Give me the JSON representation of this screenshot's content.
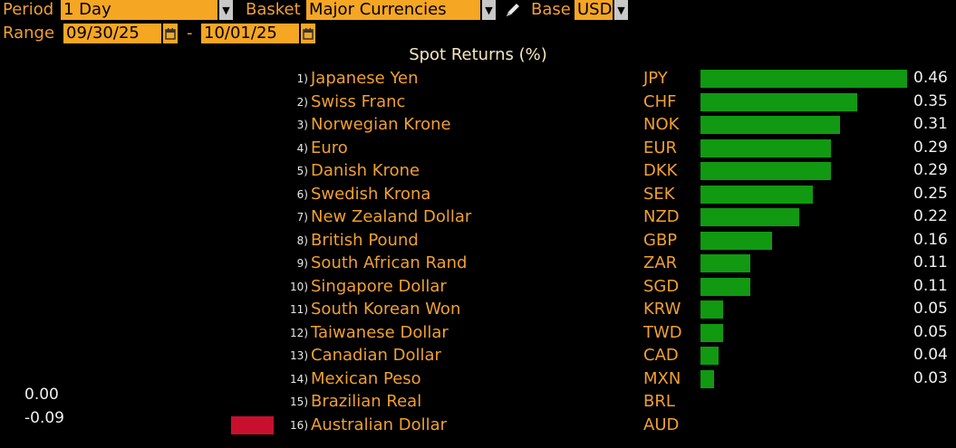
{
  "header": {
    "period_label": "Period",
    "period_value": "1 Day",
    "basket_label": "Basket",
    "basket_value": "Major Currencies",
    "base_label": "Base",
    "base_value": "USD",
    "range_label": "Range",
    "range_start": "09/30/25",
    "range_separator": "-",
    "range_end": "10/01/25"
  },
  "colors": {
    "positive": "#119911",
    "negative": "#c8102e",
    "accent": "#f5a623"
  },
  "chart_data": {
    "type": "bar",
    "title": "Spot Returns (%)",
    "orientation": "horizontal",
    "categories": [
      "Japanese Yen",
      "Swiss Franc",
      "Norwegian Krone",
      "Euro",
      "Danish Krone",
      "Swedish Krona",
      "New Zealand Dollar",
      "British Pound",
      "South African Rand",
      "Singapore Dollar",
      "South Korean Won",
      "Taiwanese Dollar",
      "Canadian Dollar",
      "Mexican Peso",
      "Brazilian Real",
      "Australian Dollar"
    ],
    "codes": [
      "JPY",
      "CHF",
      "NOK",
      "EUR",
      "DKK",
      "SEK",
      "NZD",
      "GBP",
      "ZAR",
      "SGD",
      "KRW",
      "TWD",
      "CAD",
      "MXN",
      "BRL",
      "AUD"
    ],
    "ranks": [
      "1)",
      "2)",
      "3)",
      "4)",
      "5)",
      "6)",
      "7)",
      "8)",
      "9)",
      "10)",
      "11)",
      "12)",
      "13)",
      "14)",
      "15)",
      "16)"
    ],
    "values": [
      0.46,
      0.35,
      0.31,
      0.29,
      0.29,
      0.25,
      0.22,
      0.16,
      0.11,
      0.11,
      0.05,
      0.05,
      0.04,
      0.03,
      0.0,
      -0.09
    ],
    "labels": [
      "0.46",
      "0.35",
      "0.31",
      "0.29",
      "0.29",
      "0.25",
      "0.22",
      "0.16",
      "0.11",
      "0.11",
      "0.05",
      "0.05",
      "0.04",
      "0.03",
      "0.00",
      "-0.09"
    ]
  }
}
